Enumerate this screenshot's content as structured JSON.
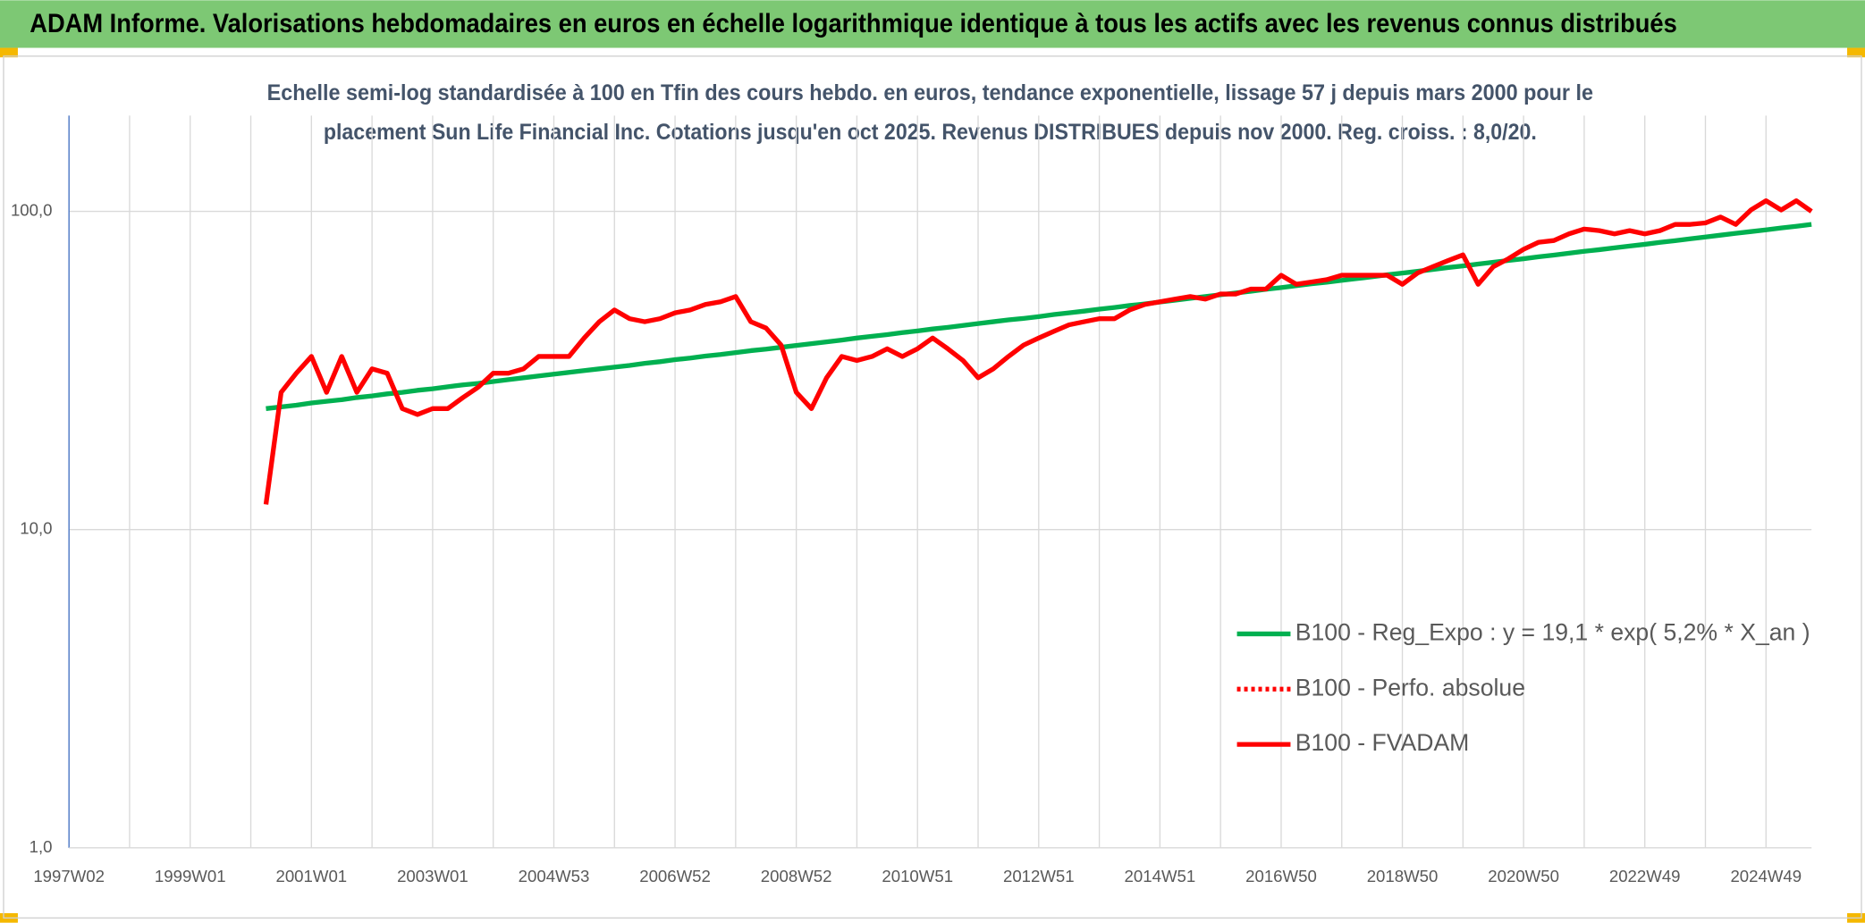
{
  "chart_data": {
    "type": "line",
    "title": "ADAM Informe. Valorisations hebdomadaires en euros en échelle logarithmique identique à tous les actifs avec les revenus connus distribués",
    "subtitle": [
      "Echelle semi-log standardisée à 100 en Tfin des cours hebdo. en euros, tendance exponentielle, lissage 57 j depuis mars 2000 pour le",
      "placement Sun Life Financial Inc. Cotations jusqu'en oct 2025. Revenus DISTRIBUES depuis nov 2000. Reg. croiss. : 8,0/20."
    ],
    "log_scale": true,
    "grid": true,
    "legend": "right",
    "ylim": [
      1,
      200
    ],
    "yticks": [
      {
        "value": 1,
        "label": "1,0"
      },
      {
        "value": 10,
        "label": "10,0"
      },
      {
        "value": 100,
        "label": "100,0"
      }
    ],
    "categories": [
      "1997W02",
      null,
      null,
      null,
      null,
      null,
      null,
      null,
      "1999W01",
      null,
      null,
      null,
      null,
      null,
      null,
      null,
      "2001W01",
      null,
      null,
      null,
      null,
      null,
      null,
      null,
      "2003W01",
      null,
      null,
      null,
      null,
      null,
      null,
      null,
      "2004W53",
      null,
      null,
      null,
      null,
      null,
      null,
      null,
      "2006W52",
      null,
      null,
      null,
      null,
      null,
      null,
      null,
      "2008W52",
      null,
      null,
      null,
      null,
      null,
      null,
      null,
      "2010W51",
      null,
      null,
      null,
      null,
      null,
      null,
      null,
      "2012W51",
      null,
      null,
      null,
      null,
      null,
      null,
      null,
      "2014W51",
      null,
      null,
      null,
      null,
      null,
      null,
      null,
      "2016W50",
      null,
      null,
      null,
      null,
      null,
      null,
      null,
      "2018W50",
      null,
      null,
      null,
      null,
      null,
      null,
      null,
      "2020W50",
      null,
      null,
      null,
      null,
      null,
      null,
      null,
      "2022W49",
      null,
      null,
      null,
      null,
      null,
      null,
      null,
      "2024W49",
      null,
      null,
      null
    ],
    "series": [
      {
        "name": "B100 - Reg_Expo : y = 19,1 * exp( 5,2% *  X_an )",
        "color": "#00b050",
        "dash": "solid",
        "values": [
          null,
          null,
          null,
          null,
          null,
          null,
          null,
          null,
          null,
          null,
          null,
          null,
          null,
          24.0,
          24.3,
          24.6,
          25.0,
          25.3,
          25.6,
          26.0,
          26.3,
          26.7,
          27.0,
          27.4,
          27.7,
          28.1,
          28.5,
          28.8,
          29.2,
          29.6,
          30.0,
          30.4,
          30.8,
          31.2,
          31.6,
          32.0,
          32.4,
          32.8,
          33.3,
          33.7,
          34.2,
          34.6,
          35.1,
          35.5,
          36.0,
          36.5,
          36.9,
          37.4,
          37.9,
          38.4,
          38.9,
          39.4,
          40.0,
          40.5,
          41.0,
          41.6,
          42.1,
          42.7,
          43.2,
          43.8,
          44.4,
          45.0,
          45.6,
          46.1,
          46.7,
          47.4,
          48.0,
          48.6,
          49.3,
          49.9,
          50.6,
          51.2,
          51.9,
          52.6,
          53.3,
          54.0,
          54.7,
          55.4,
          56.1,
          56.9,
          57.6,
          58.4,
          59.2,
          59.9,
          60.7,
          61.5,
          62.3,
          63.2,
          64.0,
          64.8,
          65.7,
          66.6,
          67.4,
          68.3,
          69.2,
          70.1,
          71.0,
          72.0,
          72.9,
          73.9,
          74.9,
          75.8,
          76.8,
          77.8,
          78.8,
          79.9,
          80.9,
          82.0,
          83.1,
          84.2,
          85.3,
          86.4,
          87.5,
          88.7,
          89.8,
          91.0
        ]
      },
      {
        "name": "B100 - Perfo. absolue",
        "color": "#ff0000",
        "dash": "dotted",
        "values": [
          null,
          null,
          null,
          null,
          null,
          null,
          null,
          null,
          null,
          null,
          null,
          null,
          null,
          null,
          null,
          null,
          null,
          null,
          null,
          null,
          null,
          null,
          null,
          null,
          null,
          null,
          null,
          null,
          null,
          null,
          null,
          null,
          null,
          null,
          null,
          null,
          null,
          null,
          null,
          null,
          null,
          null,
          null,
          null,
          null,
          null,
          null,
          null,
          null,
          null,
          null,
          null,
          null,
          null,
          null,
          null,
          null,
          null,
          null,
          null,
          null,
          null,
          null,
          null,
          null,
          null,
          null,
          null,
          null,
          null,
          null,
          null,
          null,
          null,
          null,
          null,
          null,
          null,
          null,
          null,
          null,
          null,
          null,
          null,
          null,
          null,
          null,
          null,
          null,
          null,
          null,
          null,
          null,
          null,
          null,
          null,
          null,
          null,
          null,
          null,
          null,
          null,
          null,
          null,
          null,
          null,
          null,
          null,
          null,
          null,
          null,
          null,
          null,
          null,
          null,
          null
        ]
      },
      {
        "name": "B100 - FVADAM",
        "color": "#ff0000",
        "dash": "solid",
        "values": [
          null,
          null,
          null,
          null,
          null,
          null,
          null,
          null,
          null,
          null,
          null,
          null,
          null,
          12,
          27,
          31,
          35,
          27,
          35,
          27,
          32,
          31,
          24,
          23,
          24,
          24,
          26,
          28,
          31,
          31,
          32,
          35,
          35,
          35,
          40,
          45,
          49,
          46,
          45,
          46,
          48,
          49,
          51,
          52,
          54,
          45,
          43,
          38,
          27,
          24,
          30,
          35,
          34,
          35,
          37,
          35,
          37,
          40,
          37,
          34,
          30,
          32,
          35,
          38,
          40,
          42,
          44,
          45,
          46,
          46,
          49,
          51,
          52,
          53,
          54,
          53,
          55,
          55,
          57,
          57,
          63,
          59,
          60,
          61,
          63,
          63,
          63,
          63,
          59,
          64,
          67,
          70,
          73,
          59,
          67,
          71,
          76,
          80,
          81,
          85,
          88,
          87,
          85,
          87,
          85,
          87,
          91,
          91,
          92,
          96,
          91,
          101,
          108,
          101,
          108,
          100
        ]
      }
    ]
  }
}
